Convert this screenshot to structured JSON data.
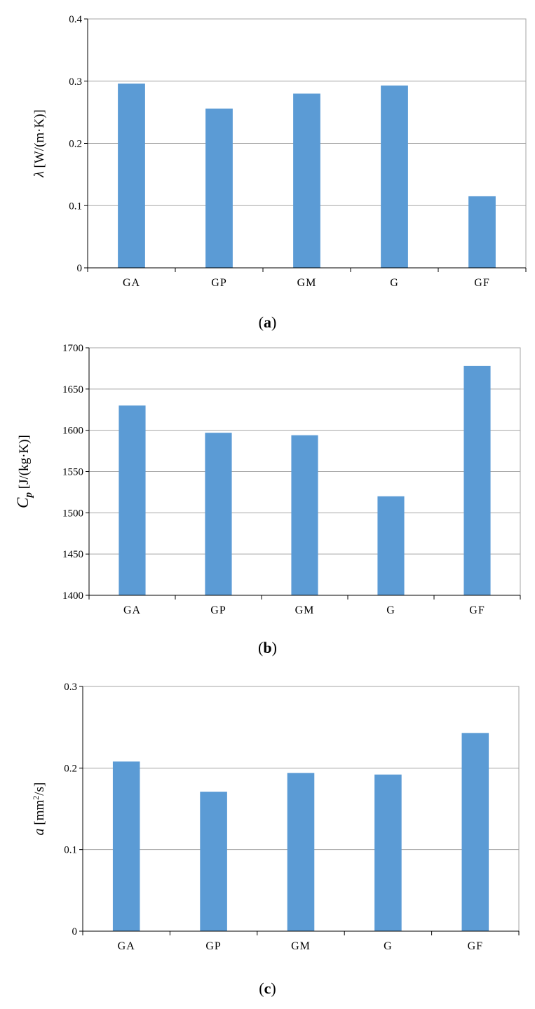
{
  "colors": {
    "bar": "#5b9bd5",
    "grid": "#a6a6a6",
    "axis": "#000000"
  },
  "chart_data": [
    {
      "type": "bar",
      "panel": "a",
      "label_open": "(",
      "label_letter": "a",
      "label_close": ")",
      "categories": [
        "GA",
        "GP",
        "GM",
        "G",
        "GF"
      ],
      "values": [
        0.296,
        0.256,
        0.28,
        0.293,
        0.115
      ],
      "ylim": [
        0,
        0.4
      ],
      "yticks": [
        0,
        0.1,
        0.2,
        0.3,
        0.4
      ],
      "ytick_labels": [
        "0",
        "0.1",
        "0.2",
        "0.3",
        "0.4"
      ],
      "ylabel_symbol": "λ",
      "ylabel_unit": " [W/(m·K)]",
      "grid": true
    },
    {
      "type": "bar",
      "panel": "b",
      "label_open": "(",
      "label_letter": "b",
      "label_close": ")",
      "categories": [
        "GA",
        "GP",
        "GM",
        "G",
        "GF"
      ],
      "values": [
        1630,
        1597,
        1594,
        1520,
        1678
      ],
      "ylim": [
        1400,
        1700
      ],
      "yticks": [
        1400,
        1450,
        1500,
        1550,
        1600,
        1650,
        1700
      ],
      "ytick_labels": [
        "1400",
        "1450",
        "1500",
        "1550",
        "1600",
        "1650",
        "1700"
      ],
      "ylabel_symbol": "C",
      "ylabel_sub": "p",
      "ylabel_unit": " [J/(kg·K)]",
      "grid": true
    },
    {
      "type": "bar",
      "panel": "c",
      "label_open": "(",
      "label_letter": "c",
      "label_close": ")",
      "categories": [
        "GA",
        "GP",
        "GM",
        "G",
        "GF"
      ],
      "values": [
        0.208,
        0.171,
        0.194,
        0.192,
        0.243
      ],
      "ylim": [
        0,
        0.3
      ],
      "yticks": [
        0,
        0.1,
        0.2,
        0.3
      ],
      "ytick_labels": [
        "0",
        "0.1",
        "0.2",
        "0.3"
      ],
      "ylabel_symbol": "a",
      "ylabel_unit": " [mm",
      "ylabel_sup": "2",
      "ylabel_unit_end": "/s]",
      "grid": true
    }
  ]
}
